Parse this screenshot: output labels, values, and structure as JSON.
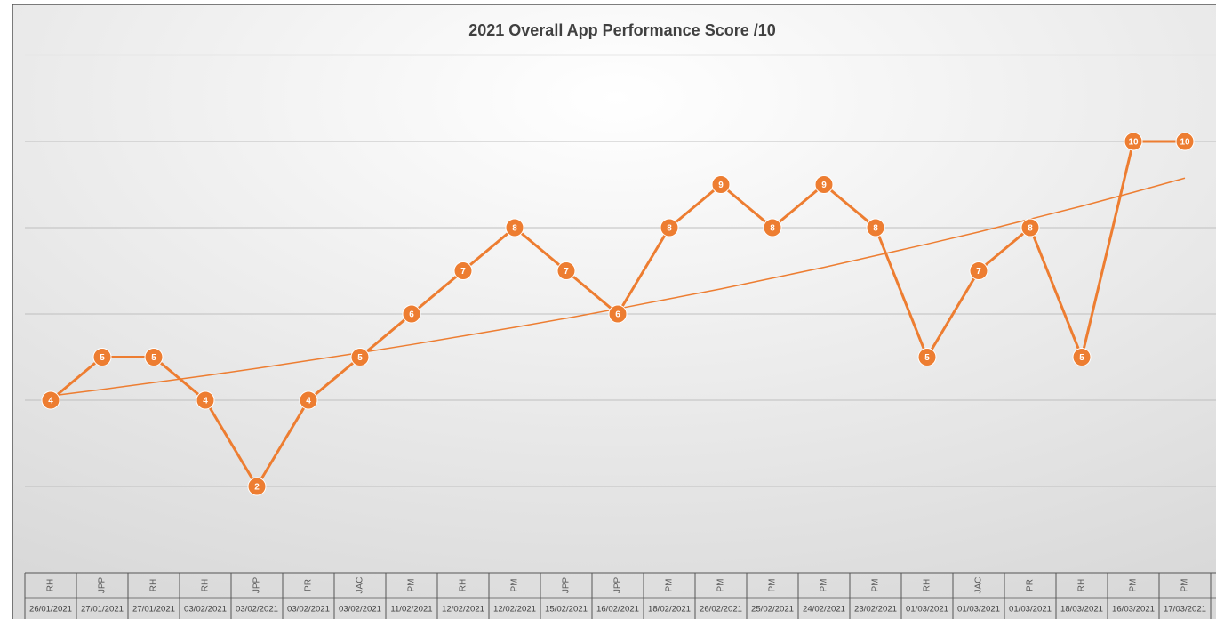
{
  "chart_data": {
    "type": "line",
    "title": "2021 Overall App Performance Score /10",
    "categories": [
      "26/01/2021",
      "27/01/2021",
      "27/01/2021",
      "03/02/2021",
      "03/02/2021",
      "03/02/2021",
      "03/02/2021",
      "11/02/2021",
      "12/02/2021",
      "12/02/2021",
      "15/02/2021",
      "16/02/2021",
      "18/02/2021",
      "26/02/2021",
      "25/02/2021",
      "24/02/2021",
      "23/02/2021",
      "01/03/2021",
      "01/03/2021",
      "01/03/2021",
      "18/03/2021",
      "16/03/2021",
      "17/03/2021"
    ],
    "testers": [
      "RH",
      "JPP",
      "RH",
      "RH",
      "JPP",
      "PR",
      "JAC",
      "PM",
      "RH",
      "PM",
      "JPP",
      "JPP",
      "PM",
      "PM",
      "PM",
      "PM",
      "PM",
      "RH",
      "JAC",
      "PR",
      "RH",
      "PM",
      "PM"
    ],
    "values": [
      4,
      5,
      5,
      4,
      2,
      4,
      5,
      6,
      7,
      8,
      7,
      6,
      8,
      9,
      8,
      9,
      8,
      5,
      7,
      8,
      5,
      10,
      10
    ],
    "color": "#ed7d31",
    "trendline": {
      "type": "exponential",
      "color": "#ed7d31",
      "values": [
        4.1,
        4.25,
        4.41,
        4.57,
        4.74,
        4.92,
        5.1,
        5.29,
        5.49,
        5.69,
        5.9,
        6.12,
        6.35,
        6.58,
        6.83,
        7.08,
        7.35,
        7.62,
        7.9,
        8.2,
        8.5,
        8.82,
        9.15
      ]
    },
    "ylim": [
      0,
      12
    ],
    "yticks": [
      0,
      2,
      4,
      6,
      8,
      10,
      12
    ],
    "grid": true
  }
}
